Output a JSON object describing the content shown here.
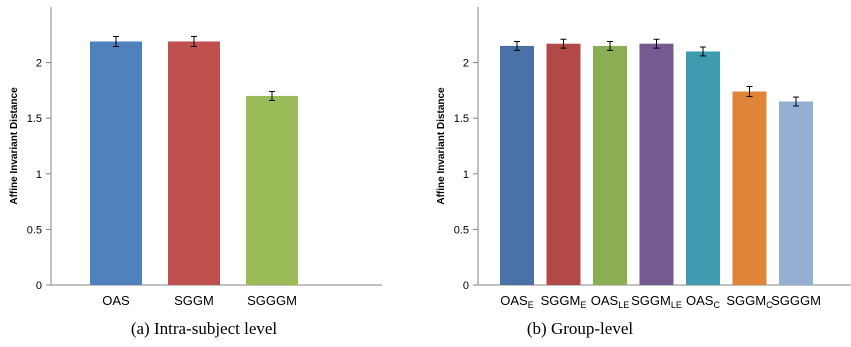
{
  "chart_data": [
    {
      "type": "bar",
      "title": "",
      "caption": "(a) Intra-subject level",
      "ylabel": "Affine Invariant Distance",
      "xlabel": "",
      "ylim": [
        0,
        2.5
      ],
      "yticks": [
        0,
        0.5,
        1,
        1.5,
        2
      ],
      "ytick_labels": [
        "0",
        "0.5",
        "1",
        "1.5",
        "2"
      ],
      "grid": false,
      "categories": [
        {
          "main": "OAS",
          "sub": ""
        },
        {
          "main": "SGGM",
          "sub": ""
        },
        {
          "main": "SGGGM",
          "sub": ""
        }
      ],
      "values": [
        2.19,
        2.19,
        1.7
      ],
      "errors": [
        0.045,
        0.045,
        0.04
      ],
      "colors": [
        "#4f81bd",
        "#c0504d",
        "#9bbb59"
      ]
    },
    {
      "type": "bar",
      "title": "",
      "caption": "(b) Group-level",
      "ylabel": "Affine Invariant Distance",
      "xlabel": "",
      "ylim": [
        0,
        2.5
      ],
      "yticks": [
        0,
        0.5,
        1,
        1.5,
        2
      ],
      "ytick_labels": [
        "0",
        "0.5",
        "1",
        "1.5",
        "2"
      ],
      "grid": false,
      "categories": [
        {
          "main": "OAS",
          "sub": "E"
        },
        {
          "main": "SGGM",
          "sub": "E"
        },
        {
          "main": "OAS",
          "sub": "LE"
        },
        {
          "main": "SGGM",
          "sub": "LE"
        },
        {
          "main": "OAS",
          "sub": "C"
        },
        {
          "main": "SGGM",
          "sub": "C"
        },
        {
          "main": "SGGGM",
          "sub": ""
        }
      ],
      "values": [
        2.15,
        2.17,
        2.15,
        2.17,
        2.1,
        1.74,
        1.65
      ],
      "errors": [
        0.04,
        0.04,
        0.04,
        0.04,
        0.04,
        0.045,
        0.04
      ],
      "colors": [
        "#4a72a8",
        "#b14a47",
        "#8bae52",
        "#755a8f",
        "#3e9bb0",
        "#e0843a",
        "#94aed4"
      ]
    }
  ]
}
